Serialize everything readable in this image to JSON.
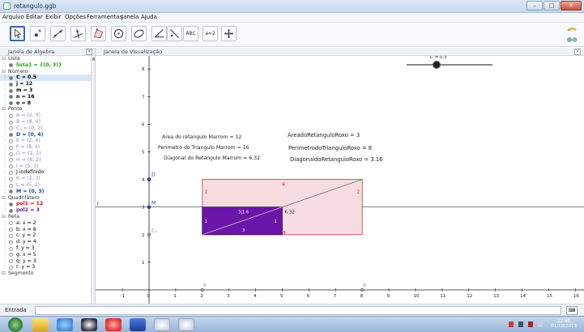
{
  "window": {
    "title": "retangulo.ggb",
    "minimize_glyph": "–",
    "maximize_glyph": "□",
    "close_glyph": "✕"
  },
  "menu": [
    "Arquivo",
    "Editar",
    "Exibir",
    "Opções",
    "Ferramentas",
    "Janela",
    "Ajuda"
  ],
  "toolbar": {
    "tools": [
      "move-tool",
      "point-tool",
      "line-tool",
      "perpendicular-line-tool",
      "polygon-tool",
      "circle-tool",
      "conic-tool",
      "angle-tool",
      "reflect-tool",
      "text-tool",
      "slider-tool",
      "move-view-tool"
    ],
    "text_tool_label": "ABC",
    "slider_tool_label": "a=2"
  },
  "algebra": {
    "header": "Janela de Álgebra",
    "close_glyph": "×",
    "rows": [
      {
        "text": "Lista",
        "kind": "group"
      },
      {
        "text": "lista1 = {(0, 3)}",
        "kind": "item",
        "color": "#18a018",
        "bold": true
      },
      {
        "text": "Número",
        "kind": "group"
      },
      {
        "text": "C = 0.5",
        "kind": "item",
        "color": "#000000",
        "bold": true,
        "selected": true
      },
      {
        "text": "j = 12",
        "kind": "item",
        "color": "#000000",
        "bold": true
      },
      {
        "text": "m = 3",
        "kind": "item",
        "color": "#000000",
        "bold": true
      },
      {
        "text": "n = 16",
        "kind": "item",
        "color": "#000000",
        "bold": true
      },
      {
        "text": "o = 8",
        "kind": "item",
        "color": "#000000",
        "bold": true
      },
      {
        "text": "Ponto",
        "kind": "group"
      },
      {
        "text": "A = (2, 0)",
        "kind": "item",
        "color": "#8a8ac0",
        "bold": false
      },
      {
        "text": "B = (8, 0)",
        "kind": "item",
        "color": "#8a8ac0",
        "bold": false
      },
      {
        "text": "C₁ = (0, 2)",
        "kind": "item",
        "color": "#8a8ac0",
        "bold": false
      },
      {
        "text": "D = (0, 4)",
        "kind": "item",
        "color": "#2040a0",
        "bold": true
      },
      {
        "text": "E = (2, 4)",
        "kind": "item",
        "color": "#8a8ac0",
        "bold": false
      },
      {
        "text": "F = (8, 4)",
        "kind": "item",
        "color": "#8a8ac0",
        "bold": false
      },
      {
        "text": "G = (2, 2)",
        "kind": "item",
        "color": "#8a8ac0",
        "bold": false
      },
      {
        "text": "H = (8, 2)",
        "kind": "item",
        "color": "#8a8ac0",
        "bold": false
      },
      {
        "text": "I = (5, 3)",
        "kind": "item",
        "color": "#8a8ac0",
        "bold": false
      },
      {
        "text": "J indefinido",
        "kind": "item",
        "color": "#000000",
        "bold": false
      },
      {
        "text": "K = (2, 3)",
        "kind": "item",
        "color": "#8a8ac0",
        "bold": false
      },
      {
        "text": "L = (5, 2)",
        "kind": "item",
        "color": "#8a8ac0",
        "bold": false
      },
      {
        "text": "M = (0, 3)",
        "kind": "item",
        "color": "#2040a0",
        "bold": true
      },
      {
        "text": "Quadrilátero",
        "kind": "group"
      },
      {
        "text": "pol1 = 12",
        "kind": "item",
        "color": "#c01818",
        "bold": true
      },
      {
        "text": "pol2 = 3",
        "kind": "item",
        "color": "#6a1a9a",
        "bold": true
      },
      {
        "text": "Reta",
        "kind": "group"
      },
      {
        "text": "a: x = 2",
        "kind": "item",
        "color": "#000000",
        "bold": false
      },
      {
        "text": "b: x = 8",
        "kind": "item",
        "color": "#000000",
        "bold": false
      },
      {
        "text": "c: y = 2",
        "kind": "item",
        "color": "#000000",
        "bold": false
      },
      {
        "text": "d: y = 4",
        "kind": "item",
        "color": "#000000",
        "bold": false
      },
      {
        "text": "f: y = 3",
        "kind": "item",
        "color": "#000000",
        "bold": false
      },
      {
        "text": "g: x = 5",
        "kind": "item",
        "color": "#000000",
        "bold": false
      },
      {
        "text": "q: y = 3",
        "kind": "item",
        "color": "#000000",
        "bold": false
      },
      {
        "text": "r: y = 3",
        "kind": "item",
        "color": "#000000",
        "bold": false
      },
      {
        "text": "Segmento",
        "kind": "group"
      }
    ]
  },
  "graphics": {
    "header": "Janela de Visualização",
    "close_glyph": "×",
    "x_ticks": [
      "-1",
      "0",
      "1",
      "2",
      "3",
      "4",
      "5",
      "6",
      "7",
      "8",
      "9",
      "10",
      "11",
      "12",
      "13",
      "14",
      "15",
      "16"
    ],
    "y_ticks": [
      "1",
      "2",
      "3",
      "4",
      "5",
      "6",
      "7",
      "8"
    ],
    "slider_label": "C = 0.5",
    "slider_value": 0.5,
    "texts_left": [
      "Area do retangulo Marrom = 12",
      "Perimetro do Triangulo Marrom = 16",
      "Diagonal do Retangulo Marrom = 6.32"
    ],
    "texts_right": [
      "AreadoRetanguloRoxo = 3",
      "PerimetrodoTrianguloRoxo = 8",
      "DiagonaldoRetanguloRoxo = 3.16"
    ],
    "point_labels": {
      "D": "D",
      "M": "M",
      "C1": "C₁",
      "A": "A",
      "B": "B",
      "f": "f"
    },
    "rect_labels": {
      "top": "6",
      "left": "2",
      "right": "2",
      "bottom": "6"
    },
    "purple_labels": {
      "inner": "3|1 6",
      "left": "1",
      "right": "1",
      "bottom": "3",
      "diag": "6.32"
    },
    "colors": {
      "pink_fill": "#f7dde1",
      "pink_stroke": "#c0474f",
      "purple_fill": "#6a16a8",
      "point_blue": "#2545b0",
      "point_light": "#9999d0"
    }
  },
  "input": {
    "label": "Entrada",
    "keyboard_glyph": "⌨"
  },
  "taskbar": {
    "apps": [
      "start-orb-icon",
      "folder-icon",
      "ie-icon",
      "media-icon",
      "opera-icon",
      "word-icon",
      "geogebra-icon",
      "geogebra-icon-2"
    ],
    "time": "12:45",
    "date": "01/10/2013"
  }
}
